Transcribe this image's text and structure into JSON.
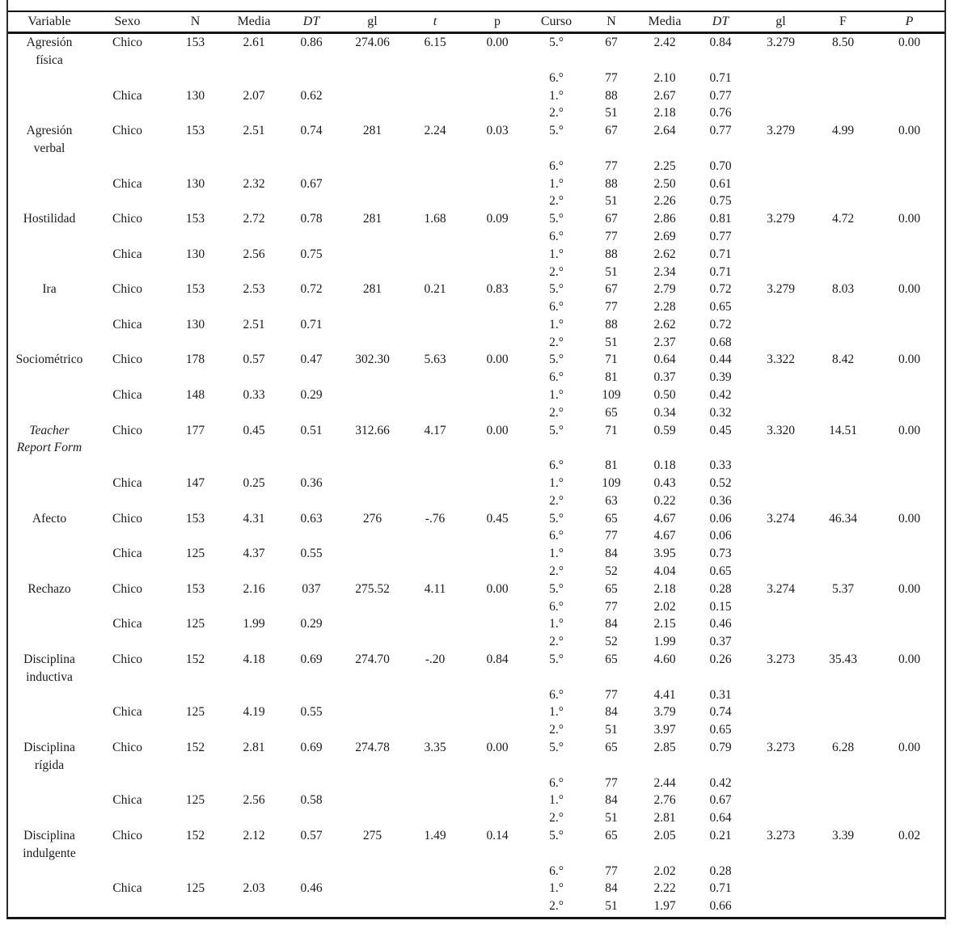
{
  "colors": {
    "text": "#1a1a1a",
    "rule": "#141414",
    "background": "#ffffff"
  },
  "table": {
    "headers": [
      {
        "label": "Variable",
        "italic": false
      },
      {
        "label": "Sexo",
        "italic": false
      },
      {
        "label": "N",
        "italic": false
      },
      {
        "label": "Media",
        "italic": false
      },
      {
        "label": "DT",
        "italic": true
      },
      {
        "label": "gl",
        "italic": false
      },
      {
        "label": "t",
        "italic": true
      },
      {
        "label": "p",
        "italic": false
      },
      {
        "label": "Curso",
        "italic": false
      },
      {
        "label": "N",
        "italic": false
      },
      {
        "label": "Media",
        "italic": false
      },
      {
        "label": "DT",
        "italic": true
      },
      {
        "label": "gl",
        "italic": false
      },
      {
        "label": "F",
        "italic": false
      },
      {
        "label": "P",
        "italic": true
      }
    ],
    "groups": [
      {
        "variable_lines": [
          "Agresión",
          "física"
        ],
        "italic": false,
        "sexo": [
          {
            "label": "Chico",
            "n": "153",
            "media": "2.61",
            "dt": "0.86",
            "gl": "274.06",
            "t": "6.15",
            "p": "0.00"
          },
          {
            "label": "Chica",
            "n": "130",
            "media": "2.07",
            "dt": "0.62",
            "gl": "",
            "t": "",
            "p": ""
          }
        ],
        "curso": [
          {
            "label": "5.°",
            "n": "67",
            "media": "2.42",
            "dt": "0.84",
            "gl": "3.279",
            "f": "8.50",
            "p": "0.00"
          },
          {
            "label": "6.°",
            "n": "77",
            "media": "2.10",
            "dt": "0.71",
            "gl": "",
            "f": "",
            "p": ""
          },
          {
            "label": "1.°",
            "n": "88",
            "media": "2.67",
            "dt": "0.77",
            "gl": "",
            "f": "",
            "p": ""
          },
          {
            "label": "2.°",
            "n": "51",
            "media": "2.18",
            "dt": "0.76",
            "gl": "",
            "f": "",
            "p": ""
          }
        ]
      },
      {
        "variable_lines": [
          "Agresión",
          "verbal"
        ],
        "italic": false,
        "sexo": [
          {
            "label": "Chico",
            "n": "153",
            "media": "2.51",
            "dt": "0.74",
            "gl": "281",
            "t": "2.24",
            "p": "0.03"
          },
          {
            "label": "Chica",
            "n": "130",
            "media": "2.32",
            "dt": "0.67",
            "gl": "",
            "t": "",
            "p": ""
          }
        ],
        "curso": [
          {
            "label": "5.°",
            "n": "67",
            "media": "2.64",
            "dt": "0.77",
            "gl": "3.279",
            "f": "4.99",
            "p": "0.00"
          },
          {
            "label": "6.°",
            "n": "77",
            "media": "2.25",
            "dt": "0.70",
            "gl": "",
            "f": "",
            "p": ""
          },
          {
            "label": "1.°",
            "n": "88",
            "media": "2.50",
            "dt": "0.61",
            "gl": "",
            "f": "",
            "p": ""
          },
          {
            "label": "2.°",
            "n": "51",
            "media": "2.26",
            "dt": "0.75",
            "gl": "",
            "f": "",
            "p": ""
          }
        ]
      },
      {
        "variable_lines": [
          "Hostilidad"
        ],
        "italic": false,
        "sexo": [
          {
            "label": "Chico",
            "n": "153",
            "media": "2.72",
            "dt": "0.78",
            "gl": "281",
            "t": "1.68",
            "p": "0.09"
          },
          {
            "label": "Chica",
            "n": "130",
            "media": "2.56",
            "dt": "0.75",
            "gl": "",
            "t": "",
            "p": ""
          }
        ],
        "curso": [
          {
            "label": "5.°",
            "n": "67",
            "media": "2.86",
            "dt": "0.81",
            "gl": "3.279",
            "f": "4.72",
            "p": "0.00"
          },
          {
            "label": "6.°",
            "n": "77",
            "media": "2.69",
            "dt": "0.77",
            "gl": "",
            "f": "",
            "p": ""
          },
          {
            "label": "1.°",
            "n": "88",
            "media": "2.62",
            "dt": "0.71",
            "gl": "",
            "f": "",
            "p": ""
          },
          {
            "label": "2.°",
            "n": "51",
            "media": "2.34",
            "dt": "0.71",
            "gl": "",
            "f": "",
            "p": ""
          }
        ]
      },
      {
        "variable_lines": [
          "Ira"
        ],
        "italic": false,
        "sexo": [
          {
            "label": "Chico",
            "n": "153",
            "media": "2.53",
            "dt": "0.72",
            "gl": "281",
            "t": "0.21",
            "p": "0.83"
          },
          {
            "label": "Chica",
            "n": "130",
            "media": "2.51",
            "dt": "0.71",
            "gl": "",
            "t": "",
            "p": ""
          }
        ],
        "curso": [
          {
            "label": "5.°",
            "n": "67",
            "media": "2.79",
            "dt": "0.72",
            "gl": "3.279",
            "f": "8.03",
            "p": "0.00"
          },
          {
            "label": "6.°",
            "n": "77",
            "media": "2.28",
            "dt": "0.65",
            "gl": "",
            "f": "",
            "p": ""
          },
          {
            "label": "1.°",
            "n": "88",
            "media": "2.62",
            "dt": "0.72",
            "gl": "",
            "f": "",
            "p": ""
          },
          {
            "label": "2.°",
            "n": "51",
            "media": "2.37",
            "dt": "0.68",
            "gl": "",
            "f": "",
            "p": ""
          }
        ]
      },
      {
        "variable_lines": [
          "Sociométrico"
        ],
        "italic": false,
        "sexo": [
          {
            "label": "Chico",
            "n": "178",
            "media": "0.57",
            "dt": "0.47",
            "gl": "302.30",
            "t": "5.63",
            "p": "0.00"
          },
          {
            "label": "Chica",
            "n": "148",
            "media": "0.33",
            "dt": "0.29",
            "gl": "",
            "t": "",
            "p": ""
          }
        ],
        "curso": [
          {
            "label": "5.°",
            "n": "71",
            "media": "0.64",
            "dt": "0.44",
            "gl": "3.322",
            "f": "8.42",
            "p": "0.00"
          },
          {
            "label": "6.°",
            "n": "81",
            "media": "0.37",
            "dt": "0.39",
            "gl": "",
            "f": "",
            "p": ""
          },
          {
            "label": "1.°",
            "n": "109",
            "media": "0.50",
            "dt": "0.42",
            "gl": "",
            "f": "",
            "p": ""
          },
          {
            "label": "2.°",
            "n": "65",
            "media": "0.34",
            "dt": "0.32",
            "gl": "",
            "f": "",
            "p": ""
          }
        ]
      },
      {
        "variable_lines": [
          "Teacher",
          "Report Form"
        ],
        "italic": true,
        "sexo": [
          {
            "label": "Chico",
            "n": "177",
            "media": "0.45",
            "dt": "0.51",
            "gl": "312.66",
            "t": "4.17",
            "p": "0.00"
          },
          {
            "label": "Chica",
            "n": "147",
            "media": "0.25",
            "dt": "0.36",
            "gl": "",
            "t": "",
            "p": ""
          }
        ],
        "curso": [
          {
            "label": "5.°",
            "n": "71",
            "media": "0.59",
            "dt": "0.45",
            "gl": "3.320",
            "f": "14.51",
            "p": "0.00"
          },
          {
            "label": "6.°",
            "n": "81",
            "media": "0.18",
            "dt": "0.33",
            "gl": "",
            "f": "",
            "p": ""
          },
          {
            "label": "1.°",
            "n": "109",
            "media": "0.43",
            "dt": "0.52",
            "gl": "",
            "f": "",
            "p": ""
          },
          {
            "label": "2.°",
            "n": "63",
            "media": "0.22",
            "dt": "0.36",
            "gl": "",
            "f": "",
            "p": ""
          }
        ]
      },
      {
        "variable_lines": [
          "Afecto"
        ],
        "italic": false,
        "sexo": [
          {
            "label": "Chico",
            "n": "153",
            "media": "4.31",
            "dt": "0.63",
            "gl": "276",
            "t": "-.76",
            "p": "0.45"
          },
          {
            "label": "Chica",
            "n": "125",
            "media": "4.37",
            "dt": "0.55",
            "gl": "",
            "t": "",
            "p": ""
          }
        ],
        "curso": [
          {
            "label": "5.°",
            "n": "65",
            "media": "4.67",
            "dt": "0.06",
            "gl": "3.274",
            "f": "46.34",
            "p": "0.00"
          },
          {
            "label": "6.°",
            "n": "77",
            "media": "4.67",
            "dt": "0.06",
            "gl": "",
            "f": "",
            "p": ""
          },
          {
            "label": "1.°",
            "n": "84",
            "media": "3.95",
            "dt": "0.73",
            "gl": "",
            "f": "",
            "p": ""
          },
          {
            "label": "2.°",
            "n": "52",
            "media": "4.04",
            "dt": "0.65",
            "gl": "",
            "f": "",
            "p": ""
          }
        ]
      },
      {
        "variable_lines": [
          "Rechazo"
        ],
        "italic": false,
        "sexo": [
          {
            "label": "Chico",
            "n": "153",
            "media": "2.16",
            "dt": "037",
            "gl": "275.52",
            "t": "4.11",
            "p": "0.00"
          },
          {
            "label": "Chica",
            "n": "125",
            "media": "1.99",
            "dt": "0.29",
            "gl": "",
            "t": "",
            "p": ""
          }
        ],
        "curso": [
          {
            "label": "5.°",
            "n": "65",
            "media": "2.18",
            "dt": "0.28",
            "gl": "3.274",
            "f": "5.37",
            "p": "0.00"
          },
          {
            "label": "6.°",
            "n": "77",
            "media": "2.02",
            "dt": "0.15",
            "gl": "",
            "f": "",
            "p": ""
          },
          {
            "label": "1.°",
            "n": "84",
            "media": "2.15",
            "dt": "0.46",
            "gl": "",
            "f": "",
            "p": ""
          },
          {
            "label": "2.°",
            "n": "52",
            "media": "1.99",
            "dt": "0.37",
            "gl": "",
            "f": "",
            "p": ""
          }
        ]
      },
      {
        "variable_lines": [
          "Disciplina",
          "inductiva"
        ],
        "italic": false,
        "sexo": [
          {
            "label": "Chico",
            "n": "152",
            "media": "4.18",
            "dt": "0.69",
            "gl": "274.70",
            "t": "-.20",
            "p": "0.84"
          },
          {
            "label": "Chica",
            "n": "125",
            "media": "4.19",
            "dt": "0.55",
            "gl": "",
            "t": "",
            "p": ""
          }
        ],
        "curso": [
          {
            "label": "5.°",
            "n": "65",
            "media": "4.60",
            "dt": "0.26",
            "gl": "3.273",
            "f": "35.43",
            "p": "0.00"
          },
          {
            "label": "6.°",
            "n": "77",
            "media": "4.41",
            "dt": "0.31",
            "gl": "",
            "f": "",
            "p": ""
          },
          {
            "label": "1.°",
            "n": "84",
            "media": "3.79",
            "dt": "0.74",
            "gl": "",
            "f": "",
            "p": ""
          },
          {
            "label": "2.°",
            "n": "51",
            "media": "3.97",
            "dt": "0.65",
            "gl": "",
            "f": "",
            "p": ""
          }
        ]
      },
      {
        "variable_lines": [
          "Disciplina",
          "rígida"
        ],
        "italic": false,
        "sexo": [
          {
            "label": "Chico",
            "n": "152",
            "media": "2.81",
            "dt": "0.69",
            "gl": "274.78",
            "t": "3.35",
            "p": "0.00"
          },
          {
            "label": "Chica",
            "n": "125",
            "media": "2.56",
            "dt": "0.58",
            "gl": "",
            "t": "",
            "p": ""
          }
        ],
        "curso": [
          {
            "label": "5.°",
            "n": "65",
            "media": "2.85",
            "dt": "0.79",
            "gl": "3.273",
            "f": "6.28",
            "p": "0.00"
          },
          {
            "label": "6.°",
            "n": "77",
            "media": "2.44",
            "dt": "0.42",
            "gl": "",
            "f": "",
            "p": ""
          },
          {
            "label": "1.°",
            "n": "84",
            "media": "2.76",
            "dt": "0.67",
            "gl": "",
            "f": "",
            "p": ""
          },
          {
            "label": "2.°",
            "n": "51",
            "media": "2.81",
            "dt": "0.64",
            "gl": "",
            "f": "",
            "p": ""
          }
        ]
      },
      {
        "variable_lines": [
          "Disciplina",
          "indulgente"
        ],
        "italic": false,
        "sexo": [
          {
            "label": "Chico",
            "n": "152",
            "media": "2.12",
            "dt": "0.57",
            "gl": "275",
            "t": "1.49",
            "p": "0.14"
          },
          {
            "label": "Chica",
            "n": "125",
            "media": "2.03",
            "dt": "0.46",
            "gl": "",
            "t": "",
            "p": ""
          }
        ],
        "curso": [
          {
            "label": "5.°",
            "n": "65",
            "media": "2.05",
            "dt": "0.21",
            "gl": "3.273",
            "f": "3.39",
            "p": "0.02"
          },
          {
            "label": "6.°",
            "n": "77",
            "media": "2.02",
            "dt": "0.28",
            "gl": "",
            "f": "",
            "p": ""
          },
          {
            "label": "1.°",
            "n": "84",
            "media": "2.22",
            "dt": "0.71",
            "gl": "",
            "f": "",
            "p": ""
          },
          {
            "label": "2.°",
            "n": "51",
            "media": "1.97",
            "dt": "0.66",
            "gl": "",
            "f": "",
            "p": ""
          }
        ]
      }
    ]
  }
}
